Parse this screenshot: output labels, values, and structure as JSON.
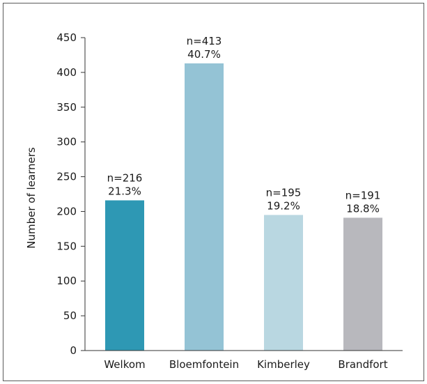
{
  "chart_data": {
    "type": "bar",
    "title": "",
    "xlabel": "",
    "ylabel": "Number of learners",
    "ylim": [
      0,
      450
    ],
    "yticks": [
      0,
      50,
      100,
      150,
      200,
      250,
      300,
      350,
      400,
      450
    ],
    "categories": [
      "Welkom",
      "Bloemfontein",
      "Kimberley",
      "Brandfort"
    ],
    "values": [
      216,
      413,
      195,
      191
    ],
    "labels_n": [
      "n=216",
      "n=413",
      "n=195",
      "n=191"
    ],
    "labels_pct": [
      "21.3%",
      "40.7%",
      "19.2%",
      "18.8%"
    ],
    "colors": [
      "#2e98b4",
      "#94c3d5",
      "#b9d7e1",
      "#b8b8bd"
    ],
    "grid": false,
    "legend": "none"
  }
}
